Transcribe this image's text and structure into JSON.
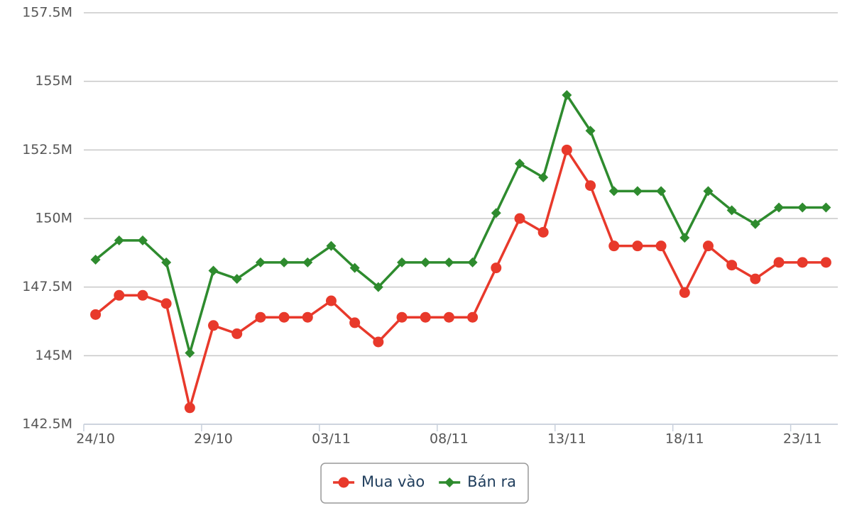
{
  "chart_data": {
    "type": "line",
    "categories": [
      "24/10",
      null,
      null,
      null,
      null,
      "29/10",
      null,
      null,
      null,
      null,
      "03/11",
      null,
      null,
      null,
      null,
      "08/11",
      null,
      null,
      null,
      null,
      "13/11",
      null,
      null,
      null,
      null,
      "18/11",
      null,
      null,
      null,
      null,
      "23/11",
      null
    ],
    "series": [
      {
        "name": "Mua vào",
        "color": "#e8392b",
        "marker": "circle",
        "values": [
          146500000,
          147200000,
          147200000,
          146900000,
          143100000,
          146100000,
          145800000,
          146400000,
          146400000,
          146400000,
          147000000,
          146200000,
          145500000,
          146400000,
          146400000,
          146400000,
          146400000,
          148200000,
          150000000,
          149500000,
          152500000,
          151200000,
          149000000,
          149000000,
          149000000,
          147300000,
          149000000,
          148300000,
          147800000,
          148400000,
          148400000,
          148400000
        ]
      },
      {
        "name": "Bán ra",
        "color": "#2e8b2e",
        "marker": "diamond",
        "values": [
          148500000,
          149200000,
          149200000,
          148400000,
          145100000,
          148100000,
          147800000,
          148400000,
          148400000,
          148400000,
          149000000,
          148200000,
          147500000,
          148400000,
          148400000,
          148400000,
          148400000,
          150200000,
          152000000,
          151500000,
          154500000,
          153200000,
          151000000,
          151000000,
          151000000,
          149300000,
          151000000,
          150300000,
          149800000,
          150400000,
          150400000,
          150400000
        ]
      }
    ],
    "ylim": [
      142500000,
      157500000
    ],
    "yticks": [
      {
        "value": 142500000,
        "label": "142.5M"
      },
      {
        "value": 145000000,
        "label": "145M"
      },
      {
        "value": 147500000,
        "label": "147.5M"
      },
      {
        "value": 150000000,
        "label": "150M"
      },
      {
        "value": 152500000,
        "label": "152.5M"
      },
      {
        "value": 155000000,
        "label": "155M"
      },
      {
        "value": 157500000,
        "label": "157.5M"
      }
    ],
    "grid": true,
    "legend": "bottom"
  }
}
